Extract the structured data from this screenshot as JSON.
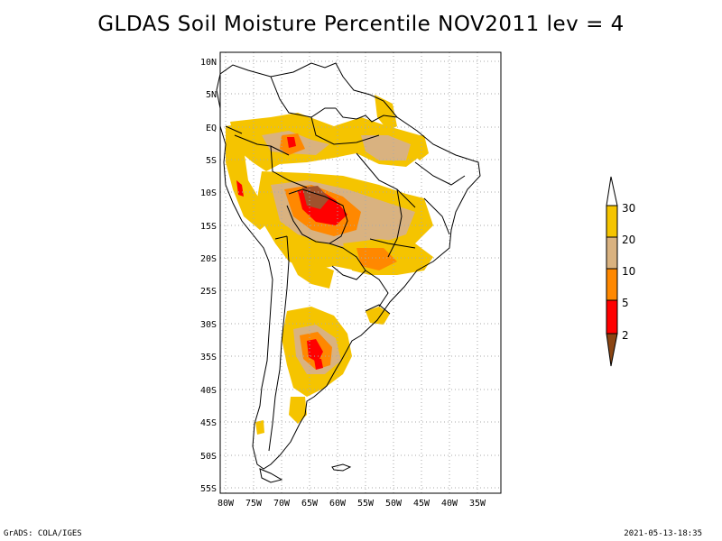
{
  "title": "GLDAS Soil Moisture Percentile NOV2011 lev = 4",
  "footer": {
    "left": "GrADS: COLA/IGES",
    "right": "2021-05-13-18:35"
  },
  "map": {
    "lon_range": [
      -81,
      -30
    ],
    "lat_range": [
      -56,
      12
    ],
    "lon_ticks": [
      "80W",
      "75W",
      "70W",
      "65W",
      "60W",
      "55W",
      "50W",
      "45W",
      "40W",
      "35W"
    ],
    "lat_ticks": [
      "10N",
      "5N",
      "EQ",
      "5S",
      "10S",
      "15S",
      "20S",
      "25S",
      "30S",
      "35S",
      "40S",
      "45S",
      "50S",
      "55S"
    ]
  },
  "legend": {
    "labels": [
      "30",
      "20",
      "10",
      "5",
      "2"
    ],
    "colors": [
      "#ffd700",
      "#d2b48c",
      "#ff8c00",
      "#ff0000",
      "#8b4513"
    ],
    "arrow_top_color": "#ffffff",
    "arrow_bottom_color": "#8b4513"
  },
  "colors": {
    "c30": "#f5c400",
    "c20": "#d9b280",
    "c10": "#ff8800",
    "c5": "#ff0000",
    "c2": "#a0522d"
  }
}
